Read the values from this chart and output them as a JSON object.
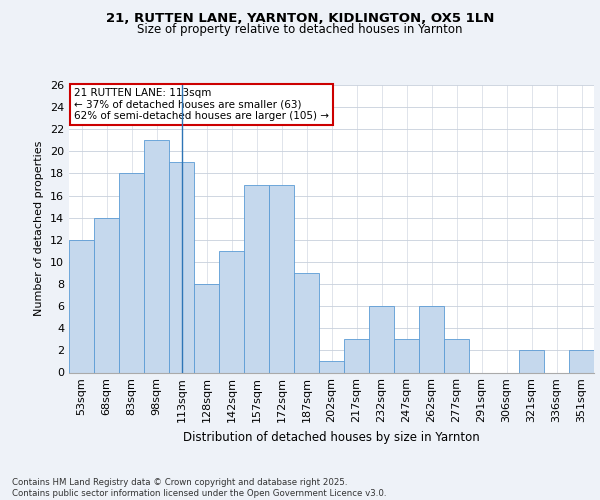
{
  "title1": "21, RUTTEN LANE, YARNTON, KIDLINGTON, OX5 1LN",
  "title2": "Size of property relative to detached houses in Yarnton",
  "xlabel": "Distribution of detached houses by size in Yarnton",
  "ylabel": "Number of detached properties",
  "categories": [
    "53sqm",
    "68sqm",
    "83sqm",
    "98sqm",
    "113sqm",
    "128sqm",
    "142sqm",
    "157sqm",
    "172sqm",
    "187sqm",
    "202sqm",
    "217sqm",
    "232sqm",
    "247sqm",
    "262sqm",
    "277sqm",
    "291sqm",
    "306sqm",
    "321sqm",
    "336sqm",
    "351sqm"
  ],
  "values": [
    12,
    14,
    18,
    21,
    19,
    8,
    11,
    17,
    17,
    9,
    1,
    3,
    6,
    3,
    6,
    3,
    0,
    0,
    2,
    0,
    2
  ],
  "bar_color": "#c5d8ed",
  "bar_edge_color": "#5b9bd5",
  "highlight_index": 4,
  "highlight_line_color": "#2e75b6",
  "annotation_line1": "21 RUTTEN LANE: 113sqm",
  "annotation_line2": "← 37% of detached houses are smaller (63)",
  "annotation_line3": "62% of semi-detached houses are larger (105) →",
  "annotation_box_color": "#ffffff",
  "annotation_border_color": "#cc0000",
  "ylim": [
    0,
    26
  ],
  "yticks": [
    0,
    2,
    4,
    6,
    8,
    10,
    12,
    14,
    16,
    18,
    20,
    22,
    24,
    26
  ],
  "footer": "Contains HM Land Registry data © Crown copyright and database right 2025.\nContains public sector information licensed under the Open Government Licence v3.0.",
  "bg_color": "#eef2f8",
  "plot_bg_color": "#ffffff",
  "grid_color": "#c8d0dc"
}
